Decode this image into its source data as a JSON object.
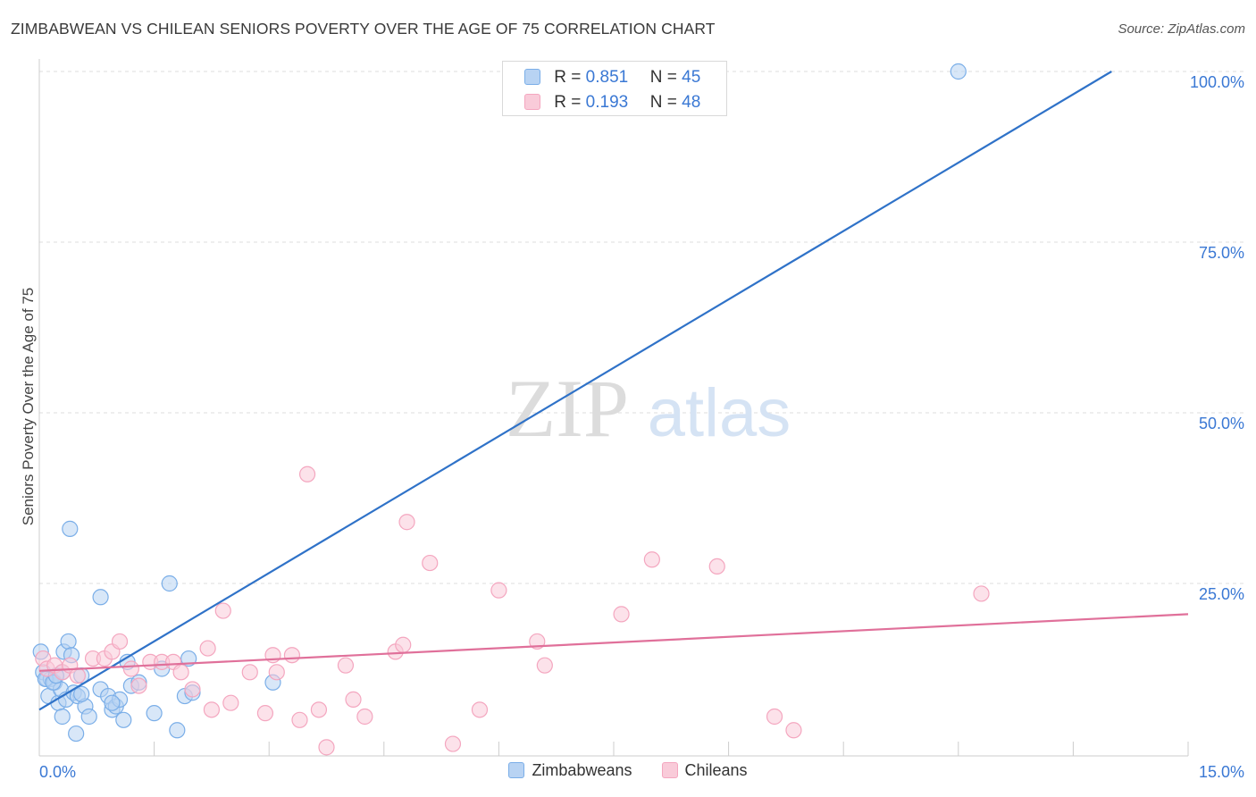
{
  "chart_data": {
    "type": "scatter",
    "title": "ZIMBABWEAN VS CHILEAN SENIORS POVERTY OVER THE AGE OF 75 CORRELATION CHART",
    "source": "Source: ZipAtlas.com",
    "watermark": {
      "zip": "ZIP",
      "atlas": "atlas"
    },
    "ylabel": "Seniors Poverty Over the Age of 75",
    "xlim": [
      0,
      15
    ],
    "ylim": [
      0,
      100
    ],
    "x_tick_labels": [
      "0.0%",
      "15.0%"
    ],
    "y_ticks": [
      25,
      50,
      75,
      100
    ],
    "y_tick_labels": [
      "25.0%",
      "50.0%",
      "75.0%",
      "100.0%"
    ],
    "legend_top": [
      {
        "r_label": "R =",
        "r_value": "0.851",
        "n_label": "N =",
        "n_value": "45"
      },
      {
        "r_label": "R =",
        "r_value": "0.193",
        "n_label": "N =",
        "n_value": "48"
      }
    ],
    "series": [
      {
        "name": "Zimbabweans",
        "color": "#7aaee8",
        "line_color": "#2f72c8",
        "trend": {
          "x0": 0.0,
          "y0": 6.5,
          "x1": 14.0,
          "y1": 100.0
        },
        "points": [
          [
            0.02,
            15.0
          ],
          [
            0.05,
            12.0
          ],
          [
            0.1,
            11.0
          ],
          [
            0.12,
            8.5
          ],
          [
            0.15,
            11.0
          ],
          [
            0.2,
            10.5
          ],
          [
            0.25,
            7.5
          ],
          [
            0.28,
            9.5
          ],
          [
            0.3,
            12.0
          ],
          [
            0.32,
            15.0
          ],
          [
            0.35,
            8.0
          ],
          [
            0.38,
            16.5
          ],
          [
            0.42,
            14.5
          ],
          [
            0.45,
            9.0
          ],
          [
            0.48,
            3.0
          ],
          [
            0.5,
            8.5
          ],
          [
            0.55,
            11.5
          ],
          [
            0.6,
            7.0
          ],
          [
            0.65,
            5.5
          ],
          [
            0.8,
            9.5
          ],
          [
            0.9,
            8.5
          ],
          [
            0.95,
            6.5
          ],
          [
            1.0,
            7.0
          ],
          [
            1.05,
            8.0
          ],
          [
            1.1,
            5.0
          ],
          [
            1.2,
            10.0
          ],
          [
            1.3,
            10.5
          ],
          [
            1.5,
            6.0
          ],
          [
            1.6,
            12.5
          ],
          [
            1.8,
            3.5
          ],
          [
            1.9,
            8.5
          ],
          [
            1.95,
            14.0
          ],
          [
            2.0,
            9.0
          ],
          [
            3.05,
            10.5
          ],
          [
            0.4,
            33.0
          ],
          [
            0.8,
            23.0
          ],
          [
            1.7,
            25.0
          ],
          [
            12.0,
            100.0
          ],
          [
            0.08,
            11.0
          ],
          [
            0.18,
            10.5
          ],
          [
            0.22,
            11.5
          ],
          [
            0.55,
            8.8
          ],
          [
            0.95,
            7.5
          ],
          [
            0.3,
            5.5
          ],
          [
            1.15,
            13.5
          ]
        ]
      },
      {
        "name": "Chileans",
        "color": "#f4a6bf",
        "line_color": "#e0709a",
        "trend": {
          "x0": 0.0,
          "y0": 12.2,
          "x1": 15.0,
          "y1": 20.5
        },
        "points": [
          [
            0.05,
            14.0
          ],
          [
            0.1,
            12.5
          ],
          [
            0.2,
            13.0
          ],
          [
            0.3,
            12.0
          ],
          [
            0.4,
            13.0
          ],
          [
            0.5,
            11.5
          ],
          [
            0.7,
            14.0
          ],
          [
            0.85,
            14.0
          ],
          [
            0.95,
            15.0
          ],
          [
            1.05,
            16.5
          ],
          [
            1.2,
            12.5
          ],
          [
            1.3,
            10.0
          ],
          [
            1.45,
            13.5
          ],
          [
            1.6,
            13.5
          ],
          [
            1.75,
            13.5
          ],
          [
            1.85,
            12.0
          ],
          [
            2.0,
            9.5
          ],
          [
            2.2,
            15.5
          ],
          [
            2.25,
            6.5
          ],
          [
            2.4,
            21.0
          ],
          [
            2.5,
            7.5
          ],
          [
            2.75,
            12.0
          ],
          [
            2.95,
            6.0
          ],
          [
            3.05,
            14.5
          ],
          [
            3.1,
            12.0
          ],
          [
            3.3,
            14.5
          ],
          [
            3.4,
            5.0
          ],
          [
            3.5,
            41.0
          ],
          [
            3.65,
            6.5
          ],
          [
            3.75,
            1.0
          ],
          [
            4.0,
            13.0
          ],
          [
            4.1,
            8.0
          ],
          [
            4.25,
            5.5
          ],
          [
            4.65,
            15.0
          ],
          [
            4.75,
            16.0
          ],
          [
            4.8,
            34.0
          ],
          [
            5.1,
            28.0
          ],
          [
            5.4,
            1.5
          ],
          [
            5.75,
            6.5
          ],
          [
            6.0,
            24.0
          ],
          [
            6.5,
            16.5
          ],
          [
            6.6,
            13.0
          ],
          [
            7.6,
            20.5
          ],
          [
            8.0,
            28.5
          ],
          [
            8.85,
            27.5
          ],
          [
            9.6,
            5.5
          ],
          [
            9.85,
            3.5
          ],
          [
            12.3,
            23.5
          ]
        ]
      }
    ]
  }
}
